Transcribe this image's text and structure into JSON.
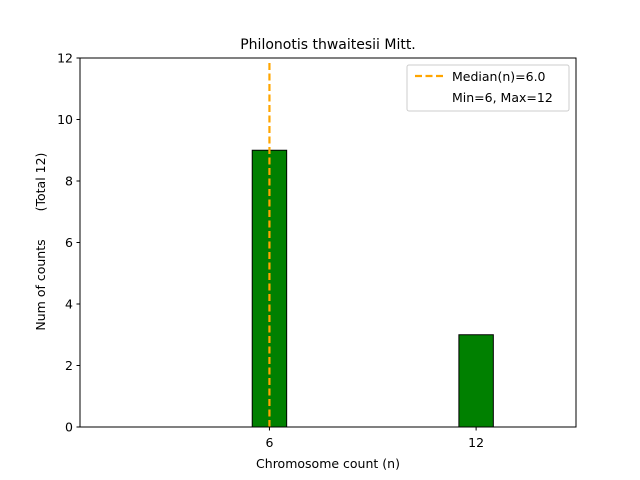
{
  "chart_data": {
    "type": "bar",
    "title": "Philonotis thwaitesii Mitt.",
    "xlabel": "Chromosome count (n)",
    "ylabel": "Num of counts",
    "ylabel_secondary": "(Total 12)",
    "x": [
      6,
      12
    ],
    "values": [
      9,
      3
    ],
    "xlim": [
      0.5,
      14.9
    ],
    "ylim": [
      0,
      12
    ],
    "yticks": [
      0,
      2,
      4,
      6,
      8,
      10,
      12
    ],
    "xticks": [
      6,
      12
    ],
    "bar_width": 1,
    "bar_color": "#008000",
    "bar_edge_color": "#000000",
    "grid": false,
    "median_line": {
      "value": 6.0,
      "color": "#FFA500",
      "style": "dashed"
    },
    "legend": {
      "placement": "top-right",
      "entries": [
        {
          "label": "Median(n)=6.0",
          "marker": "dashed-line",
          "color": "#FFA500"
        },
        {
          "label": "Min=6, Max=12",
          "marker": "none"
        }
      ]
    }
  }
}
